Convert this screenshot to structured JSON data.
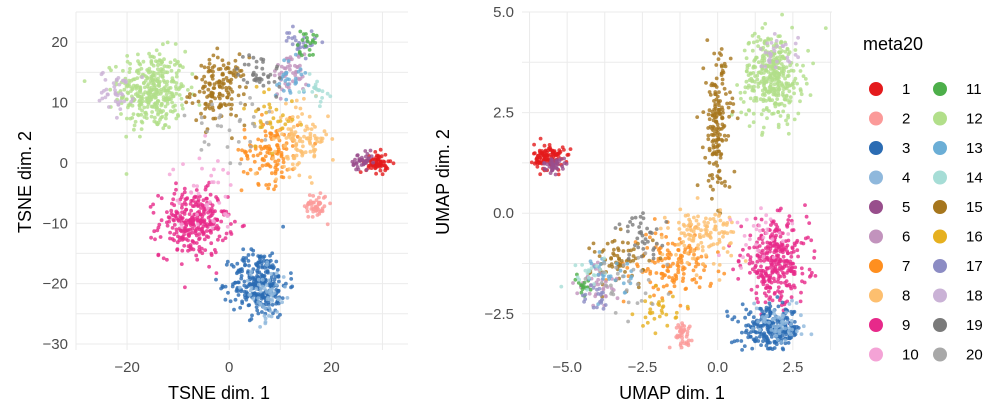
{
  "chart_data": [
    {
      "type": "scatter",
      "xlabel": "TSNE dim. 1",
      "ylabel": "TSNE dim. 2",
      "xlim": [
        -30,
        35
      ],
      "ylim": [
        -31,
        25
      ],
      "xticks": [
        -20,
        0,
        20
      ],
      "xtick_labels": [
        "−20",
        "0",
        "20"
      ],
      "yticks": [
        -30,
        -20,
        -10,
        0,
        10,
        20
      ],
      "ytick_labels": [
        "−30",
        "−20",
        "−10",
        "0",
        "10",
        "20"
      ],
      "grid": true,
      "clusters": [
        {
          "series": "12",
          "center": [
            -15,
            12
          ],
          "spread": [
            6.0,
            6.0
          ],
          "n": 360
        },
        {
          "series": "15",
          "center": [
            -2,
            12
          ],
          "spread": [
            5.0,
            5.0
          ],
          "n": 150
        },
        {
          "series": "18",
          "center": [
            -22,
            12
          ],
          "spread": [
            3.0,
            3.0
          ],
          "n": 40
        },
        {
          "series": "9",
          "center": [
            -7,
            -10
          ],
          "spread": [
            6.0,
            5.0
          ],
          "n": 300
        },
        {
          "series": "3",
          "center": [
            6,
            -20
          ],
          "spread": [
            5.0,
            5.0
          ],
          "n": 280
        },
        {
          "series": "7",
          "center": [
            8,
            2
          ],
          "spread": [
            5.0,
            5.0
          ],
          "n": 120
        },
        {
          "series": "8",
          "center": [
            14,
            4
          ],
          "spread": [
            5.0,
            5.0
          ],
          "n": 110
        },
        {
          "series": "4",
          "center": [
            7,
            -22
          ],
          "spread": [
            4.0,
            4.0
          ],
          "n": 60
        },
        {
          "series": "2",
          "center": [
            17,
            -7
          ],
          "spread": [
            2.0,
            2.0
          ],
          "n": 50
        },
        {
          "series": "1",
          "center": [
            29,
            0
          ],
          "spread": [
            2.0,
            1.5
          ],
          "n": 70
        },
        {
          "series": "5",
          "center": [
            26,
            0
          ],
          "spread": [
            2.0,
            1.5
          ],
          "n": 40
        },
        {
          "series": "6",
          "center": [
            12,
            15
          ],
          "spread": [
            3.0,
            3.0
          ],
          "n": 50
        },
        {
          "series": "17",
          "center": [
            14,
            20
          ],
          "spread": [
            3.0,
            2.0
          ],
          "n": 30
        },
        {
          "series": "11",
          "center": [
            15,
            20
          ],
          "spread": [
            2.0,
            2.0
          ],
          "n": 20
        },
        {
          "series": "13",
          "center": [
            12,
            14
          ],
          "spread": [
            3.0,
            3.0
          ],
          "n": 30
        },
        {
          "series": "14",
          "center": [
            17,
            12
          ],
          "spread": [
            2.0,
            2.0
          ],
          "n": 20
        },
        {
          "series": "19",
          "center": [
            6,
            15
          ],
          "spread": [
            4.0,
            3.0
          ],
          "n": 40
        },
        {
          "series": "10",
          "center": [
            -5,
            -5
          ],
          "spread": [
            6.0,
            6.0
          ],
          "n": 40
        },
        {
          "series": "16",
          "center": [
            8,
            8
          ],
          "spread": [
            5.0,
            5.0
          ],
          "n": 30
        },
        {
          "series": "20",
          "center": [
            0,
            5
          ],
          "spread": [
            8.0,
            8.0
          ],
          "n": 30
        }
      ]
    },
    {
      "type": "scatter",
      "xlabel": "UMAP dim. 1",
      "ylabel": "UMAP dim. 2",
      "xlim": [
        -6.5,
        3.8
      ],
      "ylim": [
        -3.4,
        5.0
      ],
      "xticks": [
        -5.0,
        -2.5,
        0.0,
        2.5
      ],
      "xtick_labels": [
        "−5.0",
        "−2.5",
        "0.0",
        "2.5"
      ],
      "yticks": [
        -2.5,
        0.0,
        2.5,
        5.0
      ],
      "ytick_labels": [
        "−2.5",
        "0.0",
        "2.5",
        "5.0"
      ],
      "grid": true,
      "clusters": [
        {
          "series": "1",
          "center": [
            -5.6,
            1.4
          ],
          "spread": [
            0.45,
            0.3
          ],
          "n": 110
        },
        {
          "series": "5",
          "center": [
            -5.4,
            1.2
          ],
          "spread": [
            0.35,
            0.15
          ],
          "n": 40
        },
        {
          "series": "12",
          "center": [
            1.8,
            3.4
          ],
          "spread": [
            0.9,
            1.0
          ],
          "n": 360
        },
        {
          "series": "15",
          "center": [
            0.0,
            2.2
          ],
          "spread": [
            0.4,
            1.6
          ],
          "n": 170
        },
        {
          "series": "9",
          "center": [
            1.9,
            -1.2
          ],
          "spread": [
            1.0,
            0.9
          ],
          "n": 320
        },
        {
          "series": "3",
          "center": [
            1.8,
            -2.9
          ],
          "spread": [
            0.9,
            0.5
          ],
          "n": 260
        },
        {
          "series": "7",
          "center": [
            -1.5,
            -1.3
          ],
          "spread": [
            1.2,
            0.7
          ],
          "n": 140
        },
        {
          "series": "8",
          "center": [
            -0.5,
            -0.5
          ],
          "spread": [
            1.0,
            0.6
          ],
          "n": 120
        },
        {
          "series": "2",
          "center": [
            -1.2,
            -3.0
          ],
          "spread": [
            0.3,
            0.25
          ],
          "n": 40
        },
        {
          "series": "4",
          "center": [
            2.0,
            -2.7
          ],
          "spread": [
            0.8,
            0.5
          ],
          "n": 60
        },
        {
          "series": "15",
          "center": [
            -3.2,
            -1.2
          ],
          "spread": [
            0.9,
            0.6
          ],
          "n": 70
        },
        {
          "series": "6",
          "center": [
            -4.0,
            -1.8
          ],
          "spread": [
            0.6,
            0.5
          ],
          "n": 40
        },
        {
          "series": "11",
          "center": [
            -4.5,
            -1.8
          ],
          "spread": [
            0.3,
            0.3
          ],
          "n": 15
        },
        {
          "series": "13",
          "center": [
            -3.5,
            -1.5
          ],
          "spread": [
            0.6,
            0.5
          ],
          "n": 30
        },
        {
          "series": "14",
          "center": [
            -4.2,
            -1.5
          ],
          "spread": [
            0.5,
            0.4
          ],
          "n": 20
        },
        {
          "series": "16",
          "center": [
            -2.0,
            -2.4
          ],
          "spread": [
            0.6,
            0.4
          ],
          "n": 30
        },
        {
          "series": "17",
          "center": [
            -4.0,
            -2.2
          ],
          "spread": [
            0.5,
            0.4
          ],
          "n": 20
        },
        {
          "series": "18",
          "center": [
            2.0,
            4.0
          ],
          "spread": [
            0.6,
            0.4
          ],
          "n": 30
        },
        {
          "series": "19",
          "center": [
            -2.5,
            -0.6
          ],
          "spread": [
            0.8,
            0.5
          ],
          "n": 40
        },
        {
          "series": "10",
          "center": [
            1.5,
            -0.5
          ],
          "spread": [
            1.0,
            0.8
          ],
          "n": 30
        },
        {
          "series": "20",
          "center": [
            -3.0,
            -1.8
          ],
          "spread": [
            1.2,
            0.7
          ],
          "n": 30
        }
      ]
    }
  ],
  "legend": {
    "title": "meta20",
    "position": "right",
    "entries": [
      {
        "label": "1",
        "color": "#e41a1c"
      },
      {
        "label": "2",
        "color": "#fb9a99"
      },
      {
        "label": "3",
        "color": "#2b6cb3"
      },
      {
        "label": "4",
        "color": "#8fb8dc"
      },
      {
        "label": "5",
        "color": "#984e8c"
      },
      {
        "label": "6",
        "color": "#c293bd"
      },
      {
        "label": "7",
        "color": "#ff8f1f"
      },
      {
        "label": "8",
        "color": "#fdbf6f"
      },
      {
        "label": "9",
        "color": "#e7298a"
      },
      {
        "label": "10",
        "color": "#f4a3d6"
      },
      {
        "label": "11",
        "color": "#4daf4a"
      },
      {
        "label": "12",
        "color": "#b2df8a"
      },
      {
        "label": "13",
        "color": "#6baed6"
      },
      {
        "label": "14",
        "color": "#a6ddd6"
      },
      {
        "label": "15",
        "color": "#a6761d"
      },
      {
        "label": "16",
        "color": "#e6b01f"
      },
      {
        "label": "17",
        "color": "#8c8cc4"
      },
      {
        "label": "18",
        "color": "#cab2d6"
      },
      {
        "label": "19",
        "color": "#7a7a7a"
      },
      {
        "label": "20",
        "color": "#a8a8a8"
      }
    ]
  }
}
